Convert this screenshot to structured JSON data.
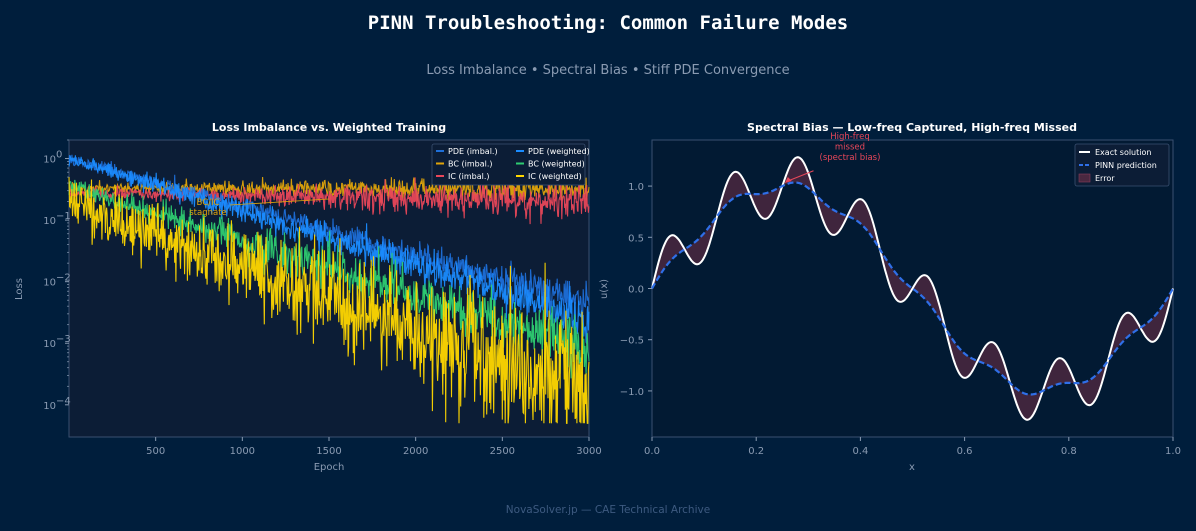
{
  "title": "PINN Troubleshooting: Common Failure Modes",
  "subtitle": "Loss Imbalance  •  Spectral Bias  •  Stiff PDE Convergence",
  "footer": "NovaSolver.jp — CAE Technical Archive",
  "colors": {
    "background": "#001e3c",
    "panel": "#0c1d36",
    "pde": "#1e6fd9",
    "bc": "#e0a40a",
    "ic": "#e8475a",
    "pde_weighted": "#1a8cff",
    "bc_weighted": "#2ecc71",
    "ic_weighted": "#ffd700",
    "exact": "#ffffff",
    "pinn": "#2f6fe8",
    "error": "#4a2840"
  },
  "chart_data": [
    {
      "type": "line",
      "title": "Loss Imbalance  vs.  Weighted Training",
      "xlabel": "Epoch",
      "ylabel": "Loss",
      "yscale": "log",
      "xlim": [
        0,
        3000
      ],
      "ylim": [
        3e-05,
        2
      ],
      "xticks": [
        500,
        1000,
        1500,
        2000,
        2500,
        3000
      ],
      "xtick_labels": [
        "500",
        "1000",
        "1500",
        "2000",
        "2500",
        "3000"
      ],
      "yticks": [
        0.0001,
        0.001,
        0.01,
        0.1,
        1
      ],
      "ytick_labels": [
        {
          "base": "10",
          "exp": "−4"
        },
        {
          "base": "10",
          "exp": "−3"
        },
        {
          "base": "10",
          "exp": "−2"
        },
        {
          "base": "10",
          "exp": "−1"
        },
        {
          "base": "10",
          "exp": "0"
        }
      ],
      "legend_position": "top-right",
      "series": [
        {
          "name": "PDE (imbal.)",
          "color": "#1e6fd9",
          "start": 1.0,
          "end": 0.0045,
          "noise": 0.3
        },
        {
          "name": "BC (imbal.)",
          "color": "#e0a40a",
          "start": 0.33,
          "end": 0.31,
          "noise": 0.22
        },
        {
          "name": "IC (imbal.)",
          "color": "#e8475a",
          "start": 0.28,
          "end": 0.2,
          "noise": 0.28
        },
        {
          "name": "PDE (weighted)",
          "color": "#1a8cff",
          "start": 1.0,
          "end": 0.0025,
          "noise": 0.35
        },
        {
          "name": "BC (weighted)",
          "color": "#2ecc71",
          "start": 0.35,
          "end": 0.0008,
          "noise": 0.5
        },
        {
          "name": "IC (weighted)",
          "color": "#ffd700",
          "start": 0.2,
          "end": 0.00015,
          "noise": 1.2,
          "floor": 5e-05
        }
      ],
      "annotation": {
        "text_line1": "BC/IC",
        "text_line2": "stagnate",
        "x": 650,
        "y": 0.15,
        "arrow_to_x": 1500,
        "arrow_to_y": 0.22
      }
    },
    {
      "type": "line",
      "title": "Spectral Bias — Low-freq Captured, High-freq Missed",
      "xlabel": "x",
      "ylabel": "u(x)",
      "xlim": [
        0,
        1
      ],
      "ylim": [
        -1.45,
        1.45
      ],
      "xticks": [
        0,
        0.2,
        0.4,
        0.6,
        0.8,
        1.0
      ],
      "xtick_labels": [
        "0.0",
        "0.2",
        "0.4",
        "0.6",
        "0.8",
        "1.0"
      ],
      "yticks": [
        -1.0,
        -0.5,
        0.0,
        0.5,
        1.0
      ],
      "ytick_labels": [
        "−1.0",
        "−0.5",
        "0.0",
        "0.5",
        "1.0"
      ],
      "legend_position": "top-right",
      "exact_function": "sin(2πx) + 0.3·sin(16πx)",
      "series": [
        {
          "name": "Exact solution",
          "color": "#ffffff",
          "style": "solid"
        },
        {
          "name": "PINN prediction",
          "color": "#2f6fe8",
          "style": "dashed"
        },
        {
          "name": "Error",
          "color": "#4a2840",
          "style": "fill"
        }
      ],
      "annotation": {
        "lines": [
          "High-freq",
          "missed",
          "(spectral bias)"
        ],
        "text_x": 0.38,
        "text_y": 1.32,
        "arrow_to_x": 0.255,
        "arrow_to_y": 1.03,
        "color": "#e8475a"
      }
    }
  ]
}
